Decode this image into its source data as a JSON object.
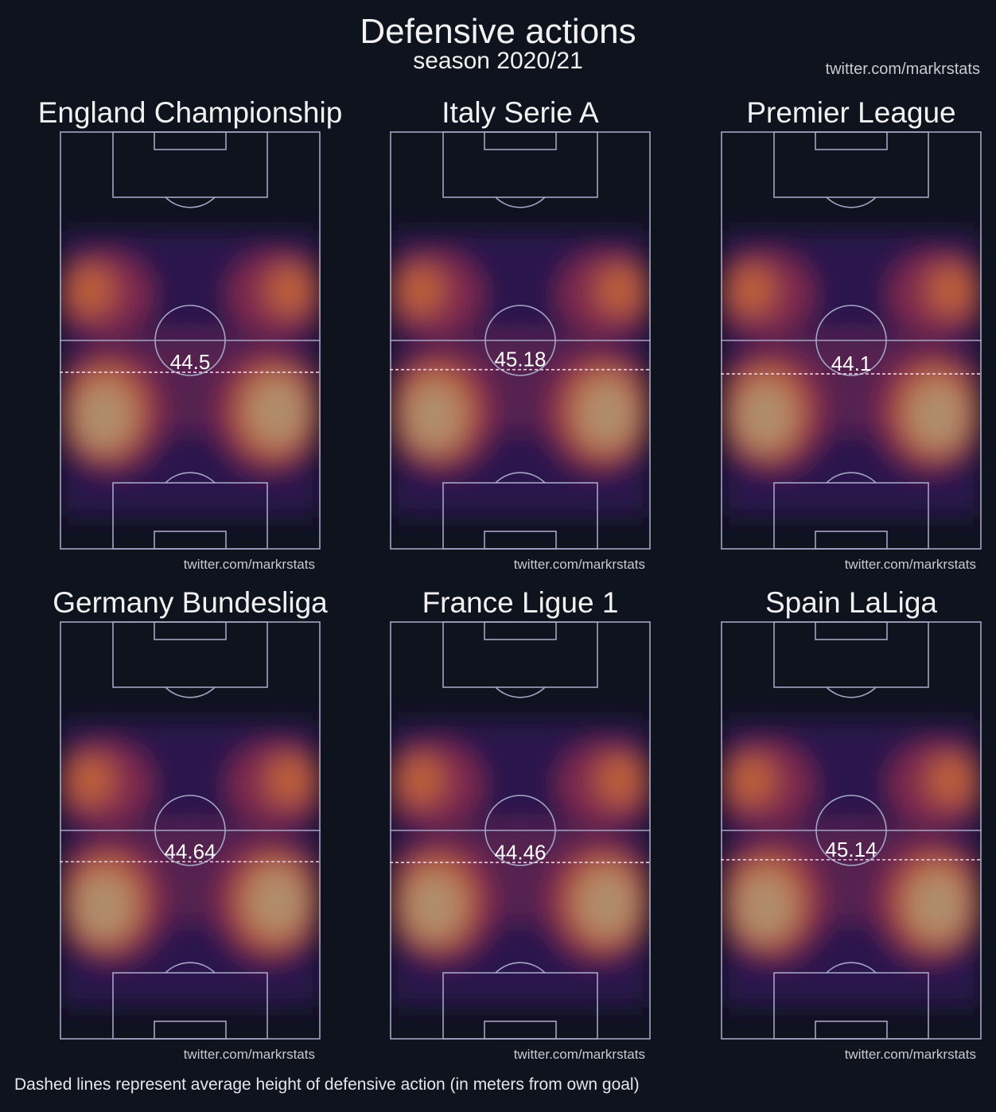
{
  "title": "Defensive actions",
  "subtitle": "season 2020/21",
  "credit": "twitter.com/markrstats",
  "footnote": "Dashed lines represent average height of defensive action (in meters from own goal)",
  "colors": {
    "background": "#0e131e",
    "pitch_lines": "#a4a4c4",
    "low": "#2a1550",
    "mid": "#8b2c4e",
    "high": "#c2643a",
    "peak": "#ae9272",
    "avg_line": "#f0d0e0"
  },
  "chart_data": [
    {
      "type": "heatmap",
      "title": "England Championship",
      "avg_height_m": 44.5,
      "label": "44.5",
      "watermark": "twitter.com/markrstats"
    },
    {
      "type": "heatmap",
      "title": "Italy Serie A",
      "avg_height_m": 45.18,
      "label": "45.18",
      "watermark": "twitter.com/markrstats"
    },
    {
      "type": "heatmap",
      "title": "Premier League",
      "avg_height_m": 44.1,
      "label": "44.1",
      "watermark": "twitter.com/markrstats"
    },
    {
      "type": "heatmap",
      "title": "Germany Bundesliga",
      "avg_height_m": 44.64,
      "label": "44.64",
      "watermark": "twitter.com/markrstats"
    },
    {
      "type": "heatmap",
      "title": "France Ligue 1",
      "avg_height_m": 44.46,
      "label": "44.46",
      "watermark": "twitter.com/markrstats"
    },
    {
      "type": "heatmap",
      "title": "Spain LaLiga",
      "avg_height_m": 45.14,
      "label": "45.14",
      "watermark": "twitter.com/markrstats"
    }
  ]
}
